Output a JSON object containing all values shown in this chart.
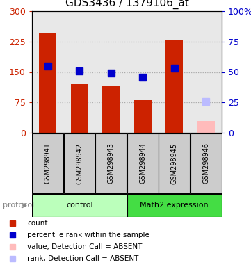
{
  "title": "GDS3436 / 1379106_at",
  "samples": [
    "GSM298941",
    "GSM298942",
    "GSM298943",
    "GSM298944",
    "GSM298945",
    "GSM298946"
  ],
  "red_values": [
    245,
    120,
    115,
    80,
    230,
    null
  ],
  "pink_values": [
    null,
    null,
    null,
    null,
    null,
    30
  ],
  "blue_values": [
    55,
    51,
    49,
    46,
    53,
    null
  ],
  "lightblue_values": [
    null,
    null,
    null,
    null,
    null,
    26
  ],
  "left_ylim": [
    0,
    300
  ],
  "right_ylim": [
    0,
    100
  ],
  "left_yticks": [
    0,
    75,
    150,
    225,
    300
  ],
  "right_yticks": [
    0,
    25,
    50,
    75,
    100
  ],
  "right_yticklabels": [
    "0",
    "25",
    "50",
    "75",
    "100%"
  ],
  "left_color": "#cc2200",
  "right_color": "#0000cc",
  "protocol_groups": [
    {
      "label": "control",
      "start": 0,
      "end": 3,
      "color": "#bbffbb"
    },
    {
      "label": "Math2 expression",
      "start": 3,
      "end": 6,
      "color": "#44dd44"
    }
  ],
  "legend_items": [
    {
      "color": "#cc2200",
      "label": "count"
    },
    {
      "color": "#0000cc",
      "label": "percentile rank within the sample"
    },
    {
      "color": "#ffbbbb",
      "label": "value, Detection Call = ABSENT"
    },
    {
      "color": "#bbbbff",
      "label": "rank, Detection Call = ABSENT"
    }
  ],
  "bar_width": 0.55,
  "marker_size": 7,
  "grid_color": "#888888",
  "bg_color": "#ffffff",
  "plot_bg": "#ffffff",
  "sample_box_color": "#cccccc",
  "sample_box_edge": "#000000"
}
